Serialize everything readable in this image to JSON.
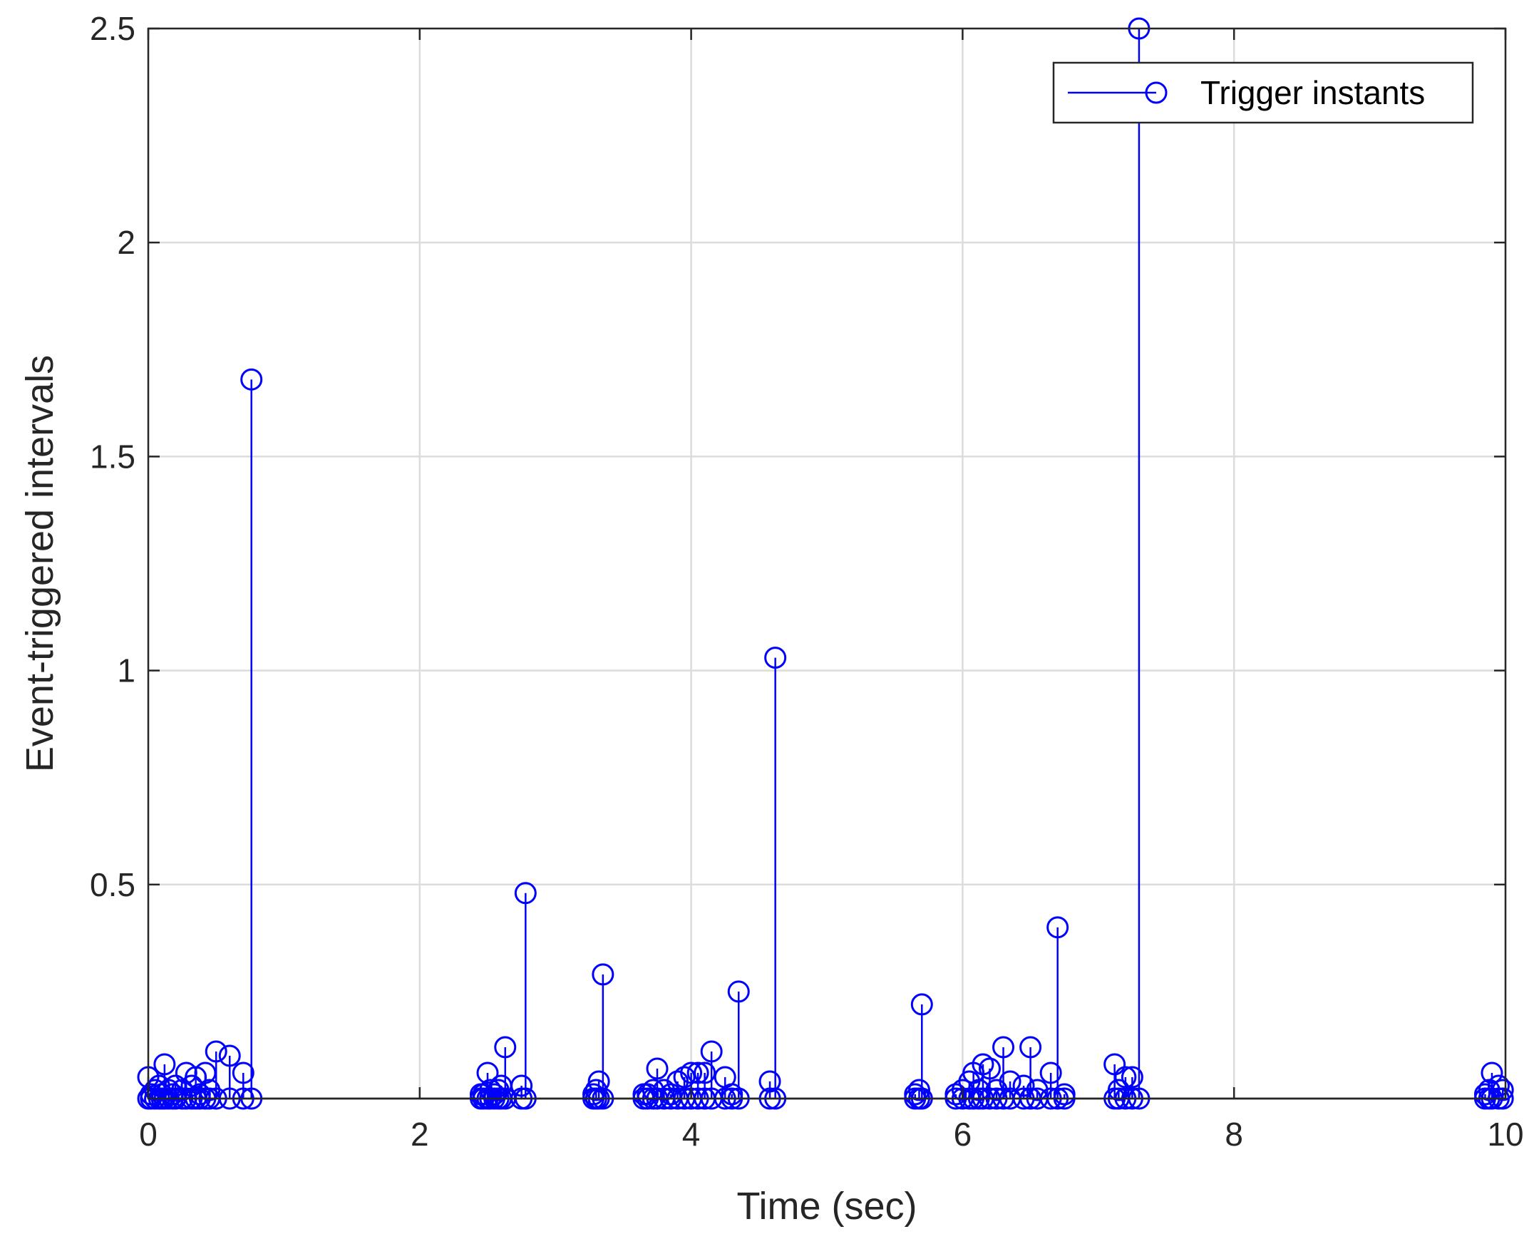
{
  "chart_data": {
    "type": "stem",
    "xlabel": "Time (sec)",
    "ylabel": "Event-triggered intervals",
    "xlim": [
      0,
      10
    ],
    "ylim": [
      0,
      2.5
    ],
    "xticks": [
      "0",
      "2",
      "4",
      "6",
      "8",
      "10"
    ],
    "yticks": [
      "0.5",
      "1",
      "1.5",
      "2",
      "2.5"
    ],
    "grid": true,
    "legend": {
      "position": "top-right",
      "entries": [
        "Trigger instants"
      ]
    },
    "series": [
      {
        "name": "Trigger instants",
        "color": "#0000ff",
        "marker": "open-circle",
        "x": [
          0.0,
          0.02,
          0.05,
          0.08,
          0.1,
          0.12,
          0.15,
          0.18,
          0.2,
          0.25,
          0.28,
          0.32,
          0.35,
          0.38,
          0.42,
          0.45,
          0.5,
          0.6,
          0.7,
          0.76,
          2.45,
          2.47,
          2.5,
          2.52,
          2.55,
          2.58,
          2.6,
          2.63,
          2.75,
          2.78,
          3.28,
          3.3,
          3.32,
          3.35,
          3.65,
          3.68,
          3.72,
          3.75,
          3.8,
          3.85,
          3.9,
          3.95,
          4.0,
          4.05,
          4.1,
          4.15,
          4.25,
          4.3,
          4.35,
          4.58,
          4.62,
          5.65,
          5.68,
          5.7,
          5.95,
          6.0,
          6.05,
          6.08,
          6.12,
          6.15,
          6.2,
          6.25,
          6.3,
          6.35,
          6.45,
          6.5,
          6.55,
          6.65,
          6.7,
          6.75,
          7.12,
          7.15,
          7.2,
          7.25,
          7.3,
          9.85,
          9.88,
          9.9,
          9.95,
          9.98
        ],
        "y": [
          0.05,
          0.01,
          0.02,
          0.03,
          0.01,
          0.08,
          0.02,
          0.01,
          0.03,
          0.02,
          0.06,
          0.03,
          0.05,
          0.01,
          0.06,
          0.02,
          0.11,
          0.1,
          0.06,
          1.68,
          0.01,
          0.01,
          0.06,
          0.02,
          0.01,
          0.02,
          0.03,
          0.12,
          0.03,
          0.48,
          0.01,
          0.02,
          0.04,
          0.29,
          0.01,
          0.01,
          0.02,
          0.07,
          0.02,
          0.01,
          0.04,
          0.05,
          0.06,
          0.06,
          0.06,
          0.11,
          0.05,
          0.01,
          0.25,
          0.04,
          1.03,
          0.01,
          0.02,
          0.22,
          0.01,
          0.02,
          0.04,
          0.06,
          0.02,
          0.08,
          0.07,
          0.02,
          0.12,
          0.04,
          0.03,
          0.12,
          0.02,
          0.06,
          0.4,
          0.01,
          0.08,
          0.02,
          0.05,
          0.05,
          2.5,
          0.01,
          0.02,
          0.06,
          0.03,
          0.02
        ]
      }
    ]
  }
}
